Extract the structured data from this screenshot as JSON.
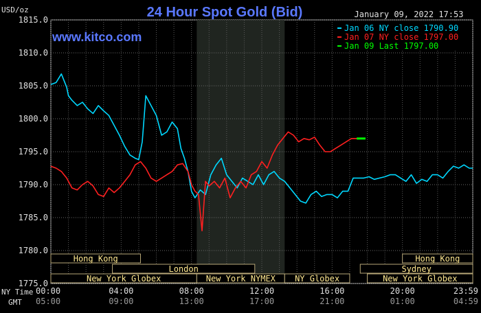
{
  "chart_data": {
    "type": "line",
    "title": "24 Hour Spot Gold (Bid)",
    "watermark": "www.kitco.com",
    "ylabel": "USD/oz",
    "timestamp": "January 09, 2022 17:53",
    "ylim": [
      1775.0,
      1815.0
    ],
    "y_ticks": [
      "1815.0",
      "1810.0",
      "1805.0",
      "1800.0",
      "1795.0",
      "1790.0",
      "1785.0",
      "1780.0",
      "1775.0"
    ],
    "y_tick_values": [
      1815,
      1810,
      1805,
      1800,
      1795,
      1790,
      1785,
      1780,
      1775
    ],
    "xlim": [
      0,
      24
    ],
    "x_ticks": [
      {
        "hour": 0,
        "ny": "00:00",
        "gmt": "05:00"
      },
      {
        "hour": 4,
        "ny": "04:00",
        "gmt": "09:00"
      },
      {
        "hour": 8,
        "ny": "08:00",
        "gmt": "13:00"
      },
      {
        "hour": 12,
        "ny": "12:00",
        "gmt": "17:00"
      },
      {
        "hour": 16,
        "ny": "16:00",
        "gmt": "21:00"
      },
      {
        "hour": 20,
        "ny": "20:00",
        "gmt": "01:00"
      },
      {
        "hour": 24,
        "ny": "23:59",
        "gmt": "04:59"
      }
    ],
    "x_row_labels": {
      "ny": "NY Time",
      "gmt": "GMT"
    },
    "grid": true,
    "shaded_hours": [
      8.3,
      13.3
    ],
    "legend_position": "top-right",
    "legend": [
      {
        "label": "Jan 06 NY close 1790.90",
        "color": "#00d8ff"
      },
      {
        "label": "Jan 07 NY close 1797.00",
        "color": "#ff2020"
      },
      {
        "label": "Jan 09 Last 1797.00",
        "color": "#00ff00"
      }
    ],
    "series": [
      {
        "name": "Jan 06",
        "color": "#00d8ff",
        "x": [
          0,
          0.3,
          0.6,
          0.9,
          1.0,
          1.2,
          1.5,
          1.8,
          2.1,
          2.4,
          2.7,
          3.0,
          3.3,
          3.6,
          3.9,
          4.2,
          4.5,
          4.8,
          5.0,
          5.2,
          5.4,
          5.7,
          6.0,
          6.3,
          6.6,
          6.9,
          7.2,
          7.4,
          7.6,
          7.8,
          8.0,
          8.2,
          8.5,
          8.8,
          9.1,
          9.4,
          9.7,
          10.0,
          10.3,
          10.6,
          10.9,
          11.2,
          11.5,
          11.8,
          12.1,
          12.4,
          12.7,
          13.0,
          13.3,
          13.6,
          13.9,
          14.2,
          14.5,
          14.8,
          15.1,
          15.4,
          15.7,
          16.0,
          16.3,
          16.6,
          16.9,
          17.2,
          17.5,
          17.8,
          18.1,
          18.4,
          18.7,
          19.0,
          19.3,
          19.6,
          19.9,
          20.2,
          20.5,
          20.8,
          21.1,
          21.4,
          21.7,
          22.0,
          22.3,
          22.6,
          22.9,
          23.2,
          23.5,
          23.8,
          24.0
        ],
        "y": [
          1805.2,
          1805.5,
          1806.8,
          1804.8,
          1803.5,
          1802.8,
          1802.0,
          1802.5,
          1801.5,
          1800.8,
          1802.0,
          1801.2,
          1800.5,
          1799.0,
          1797.5,
          1795.8,
          1794.5,
          1794.0,
          1793.8,
          1796.5,
          1803.5,
          1802.0,
          1800.5,
          1797.5,
          1798.0,
          1799.5,
          1798.5,
          1795.5,
          1794.0,
          1792.0,
          1789.0,
          1788.0,
          1789.2,
          1788.5,
          1791.5,
          1793.0,
          1794.0,
          1791.5,
          1790.5,
          1789.5,
          1791.0,
          1790.5,
          1790.0,
          1791.5,
          1790.0,
          1791.5,
          1792.0,
          1791.0,
          1790.5,
          1789.5,
          1788.5,
          1787.5,
          1787.2,
          1788.5,
          1789.0,
          1788.2,
          1788.5,
          1788.5,
          1788.0,
          1789.0,
          1789.0,
          1791.0,
          1791.0,
          1791.0,
          1791.2,
          1790.8,
          1791.0,
          1791.2,
          1791.5,
          1791.5,
          1791.0,
          1790.5,
          1791.5,
          1790.2,
          1790.8,
          1790.5,
          1791.5,
          1791.5,
          1791.0,
          1792.0,
          1792.8,
          1792.5,
          1793.0,
          1792.5,
          1792.5
        ]
      },
      {
        "name": "Jan 07",
        "color": "#ff2020",
        "x": [
          0,
          0.3,
          0.6,
          0.9,
          1.2,
          1.5,
          1.8,
          2.1,
          2.4,
          2.7,
          3.0,
          3.3,
          3.6,
          3.9,
          4.2,
          4.5,
          4.8,
          5.1,
          5.4,
          5.7,
          6.0,
          6.3,
          6.6,
          6.9,
          7.2,
          7.5,
          7.8,
          8.0,
          8.2,
          8.4,
          8.6,
          8.8,
          9.0,
          9.3,
          9.6,
          9.9,
          10.2,
          10.5,
          10.8,
          11.1,
          11.4,
          11.7,
          12.0,
          12.3,
          12.6,
          12.9,
          13.2,
          13.5,
          13.8,
          14.1,
          14.4,
          14.7,
          15.0,
          15.3,
          15.6,
          15.9,
          16.2,
          16.5,
          16.8,
          17.1,
          17.4
        ],
        "y": [
          1792.8,
          1792.5,
          1792.0,
          1791.0,
          1789.5,
          1789.2,
          1790.0,
          1790.5,
          1789.8,
          1788.5,
          1788.2,
          1789.5,
          1788.8,
          1789.5,
          1790.5,
          1791.5,
          1793.0,
          1793.5,
          1792.5,
          1791.0,
          1790.5,
          1791.0,
          1791.5,
          1792.0,
          1793.0,
          1793.2,
          1792.0,
          1790.0,
          1789.0,
          1788.5,
          1783.0,
          1790.5,
          1789.8,
          1790.5,
          1789.5,
          1791.0,
          1788.0,
          1789.5,
          1790.5,
          1789.5,
          1791.5,
          1792.0,
          1793.5,
          1792.5,
          1794.5,
          1796.0,
          1797.0,
          1798.0,
          1797.5,
          1796.5,
          1797.0,
          1796.8,
          1797.2,
          1796.0,
          1795.0,
          1795.0,
          1795.5,
          1796.0,
          1796.5,
          1797.0,
          1797.0
        ]
      },
      {
        "name": "Jan 09",
        "color": "#00ff00",
        "x": [
          17.4,
          17.6,
          17.9
        ],
        "y": [
          1797.0,
          1797.0,
          1797.0
        ]
      }
    ],
    "sessions": [
      {
        "label": "Hong Kong",
        "row": 0,
        "start": 0,
        "end": 5.1
      },
      {
        "label": "Hong Kong",
        "row": 0,
        "start": 20.0,
        "end": 24.0
      },
      {
        "label": "London",
        "row": 1,
        "start": 3.5,
        "end": 11.6
      },
      {
        "label": "Sydney",
        "row": 1,
        "start": 17.6,
        "end": 24.0
      },
      {
        "label": "New York Globex",
        "row": 2,
        "start": 0,
        "end": 8.3
      },
      {
        "label": "New York NYMEX",
        "row": 2,
        "start": 8.3,
        "end": 13.3
      },
      {
        "label": "NY Globex",
        "row": 2,
        "start": 13.3,
        "end": 17.0
      },
      {
        "label": "New York Globex",
        "row": 2,
        "start": 18.0,
        "end": 24.0
      }
    ]
  }
}
